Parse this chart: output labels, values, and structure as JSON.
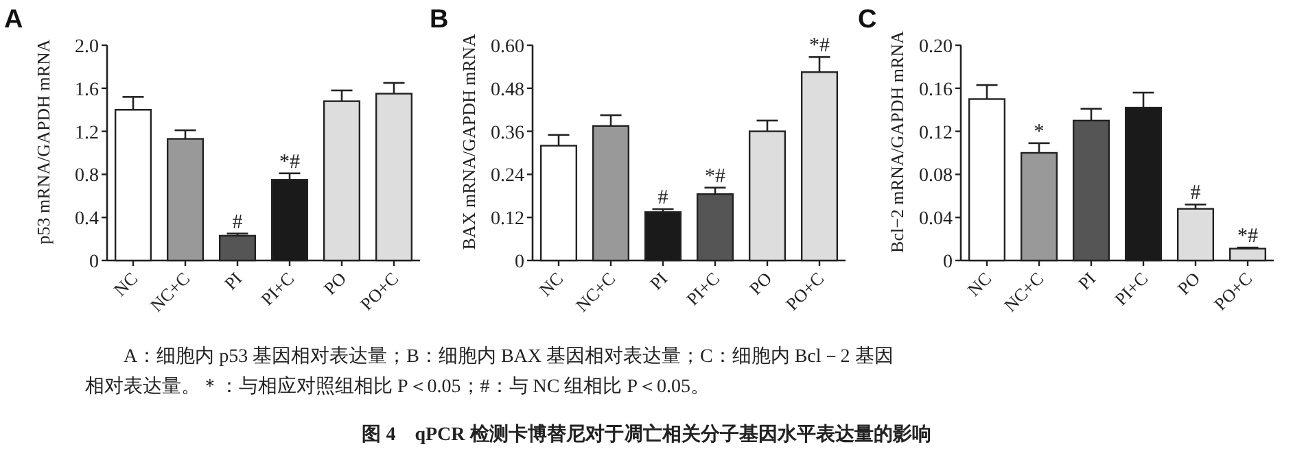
{
  "chart_data": [
    {
      "type": "bar",
      "title": "A",
      "ylabel": "p53 mRNA/GAPDH mRNA",
      "categories": [
        "NC",
        "NC+C",
        "PI",
        "PI+C",
        "PO",
        "PO+C"
      ],
      "values": [
        1.4,
        1.13,
        0.23,
        0.75,
        1.48,
        1.55
      ],
      "errors": [
        [
          1.4,
          1.52
        ],
        [
          1.13,
          1.21
        ],
        [
          0.23,
          0.25
        ],
        [
          0.75,
          0.81
        ],
        [
          1.48,
          1.58
        ],
        [
          1.55,
          1.65
        ]
      ],
      "colors": [
        "#ffffff",
        "#999999",
        "#555555",
        "#1a1a1a",
        "#dddddd",
        "#dddddd"
      ],
      "ylim": [
        0,
        2.0
      ],
      "yticks": [
        0,
        0.4,
        0.8,
        1.2,
        1.6,
        {
          "value": 2.0,
          "label": "2.0"
        }
      ],
      "annotations": [
        {
          "text": "#",
          "x": "PI",
          "y": 0.25
        },
        {
          "text": "*#",
          "x": "PI+C",
          "y": 0.81
        }
      ]
    },
    {
      "type": "bar",
      "title": "B",
      "ylabel": "BAX mRNA/GAPDH mRNA",
      "categories": [
        "NC",
        "NC+C",
        "PI",
        "PI+C",
        "PO",
        "PO+C"
      ],
      "values": [
        0.32,
        0.375,
        0.135,
        0.185,
        0.36,
        0.525
      ],
      "errors": [
        [
          0.32,
          0.35
        ],
        [
          0.375,
          0.405
        ],
        [
          0.135,
          0.143
        ],
        [
          0.185,
          0.203
        ],
        [
          0.36,
          0.39
        ],
        [
          0.525,
          0.567
        ]
      ],
      "colors": [
        "#ffffff",
        "#999999",
        "#1a1a1a",
        "#555555",
        "#dddddd",
        "#dddddd"
      ],
      "ylim": [
        0,
        0.6
      ],
      "yticks": [
        0,
        0.12,
        0.24,
        0.36,
        0.48,
        {
          "value": 0.6,
          "label": "0.60"
        }
      ],
      "annotations": [
        {
          "text": "#",
          "x": "PI",
          "y": 0.143
        },
        {
          "text": "*#",
          "x": "PI+C",
          "y": 0.203
        },
        {
          "text": "*#",
          "x": "PO+C",
          "y": 0.567
        }
      ]
    },
    {
      "type": "bar",
      "title": "C",
      "ylabel": "Bcl−2 mRNA/GAPDH mRNA",
      "categories": [
        "NC",
        "NC+C",
        "PI",
        "PI+C",
        "PO",
        "PO+C"
      ],
      "values": [
        0.15,
        0.1,
        0.13,
        0.142,
        0.048,
        0.011
      ],
      "errors": [
        [
          0.15,
          0.163
        ],
        [
          0.1,
          0.109
        ],
        [
          0.13,
          0.141
        ],
        [
          0.142,
          0.156
        ],
        [
          0.048,
          0.052
        ],
        [
          0.011,
          0.012
        ]
      ],
      "colors": [
        "#ffffff",
        "#999999",
        "#555555",
        "#1a1a1a",
        "#dddddd",
        "#dddddd"
      ],
      "ylim": [
        0,
        0.2
      ],
      "yticks": [
        0,
        0.04,
        0.08,
        0.12,
        0.16,
        {
          "value": 0.2,
          "label": "0.20"
        }
      ],
      "annotations": [
        {
          "text": "*",
          "x": "NC+C",
          "y": 0.109
        },
        {
          "text": "#",
          "x": "PO",
          "y": 0.052
        },
        {
          "text": "*#",
          "x": "PO+C",
          "y": 0.012
        }
      ]
    },
    {
      "type": "other",
      "title": "图 4　qPCR 检测卡博替尼对于凋亡相关分子基因水平表达量的影响",
      "annotations": [
        "A：细胞内 p53 基因相对表达量；B：细胞内 BAX 基因相对表达量；C：细胞内 Bcl－2 基因相对表达量。＊：与相应对照组相比 P＜0.05；#：与 NC 组相比 P＜0.05。"
      ]
    }
  ]
}
